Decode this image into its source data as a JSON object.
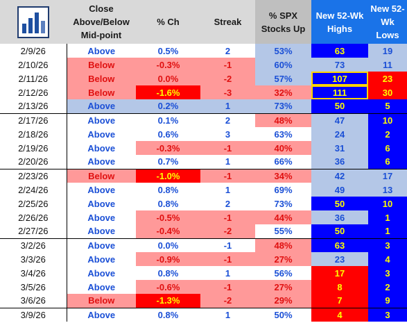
{
  "headers": {
    "close": "Close Above/Below Mid-point",
    "pct_ch": "% Ch",
    "streak": "Streak",
    "spx_up": "% SPX Stocks Up",
    "new_highs": "New 52-Wk Highs",
    "new_lows": "New 52-Wk Lows"
  },
  "rows": [
    {
      "date": "2/9/26",
      "close": "Above",
      "pct": "0.5%",
      "streak": "2",
      "spx": "53%",
      "highs": "63",
      "lows": "19",
      "week_end": false
    },
    {
      "date": "2/10/26",
      "close": "Below",
      "pct": "-0.3%",
      "streak": "-1",
      "spx": "60%",
      "highs": "73",
      "lows": "11",
      "week_end": false
    },
    {
      "date": "2/11/26",
      "close": "Below",
      "pct": "0.0%",
      "streak": "-2",
      "spx": "57%",
      "highs": "107",
      "lows": "23",
      "week_end": false
    },
    {
      "date": "2/12/26",
      "close": "Below",
      "pct": "-1.6%",
      "streak": "-3",
      "spx": "32%",
      "highs": "111",
      "lows": "30",
      "week_end": false
    },
    {
      "date": "2/13/26",
      "close": "Above",
      "pct": "0.2%",
      "streak": "1",
      "spx": "73%",
      "highs": "50",
      "lows": "5",
      "week_end": true
    },
    {
      "date": "2/17/26",
      "close": "Above",
      "pct": "0.1%",
      "streak": "2",
      "spx": "48%",
      "highs": "47",
      "lows": "10",
      "week_end": false
    },
    {
      "date": "2/18/26",
      "close": "Above",
      "pct": "0.6%",
      "streak": "3",
      "spx": "63%",
      "highs": "24",
      "lows": "2",
      "week_end": false
    },
    {
      "date": "2/19/26",
      "close": "Above",
      "pct": "-0.3%",
      "streak": "-1",
      "spx": "40%",
      "highs": "31",
      "lows": "6",
      "week_end": false
    },
    {
      "date": "2/20/26",
      "close": "Above",
      "pct": "0.7%",
      "streak": "1",
      "spx": "66%",
      "highs": "36",
      "lows": "6",
      "week_end": true
    },
    {
      "date": "2/23/26",
      "close": "Below",
      "pct": "-1.0%",
      "streak": "-1",
      "spx": "34%",
      "highs": "42",
      "lows": "17",
      "week_end": false
    },
    {
      "date": "2/24/26",
      "close": "Above",
      "pct": "0.8%",
      "streak": "1",
      "spx": "69%",
      "highs": "49",
      "lows": "13",
      "week_end": false
    },
    {
      "date": "2/25/26",
      "close": "Above",
      "pct": "0.8%",
      "streak": "2",
      "spx": "73%",
      "highs": "50",
      "lows": "10",
      "week_end": false
    },
    {
      "date": "2/26/26",
      "close": "Above",
      "pct": "-0.5%",
      "streak": "-1",
      "spx": "44%",
      "highs": "36",
      "lows": "1",
      "week_end": false
    },
    {
      "date": "2/27/26",
      "close": "Above",
      "pct": "-0.4%",
      "streak": "-2",
      "spx": "55%",
      "highs": "50",
      "lows": "1",
      "week_end": true
    },
    {
      "date": "3/2/26",
      "close": "Above",
      "pct": "0.0%",
      "streak": "-1",
      "spx": "48%",
      "highs": "63",
      "lows": "3",
      "week_end": false
    },
    {
      "date": "3/3/26",
      "close": "Above",
      "pct": "-0.9%",
      "streak": "-1",
      "spx": "27%",
      "highs": "23",
      "lows": "4",
      "week_end": false
    },
    {
      "date": "3/4/26",
      "close": "Above",
      "pct": "0.8%",
      "streak": "1",
      "spx": "56%",
      "highs": "17",
      "lows": "3",
      "week_end": false
    },
    {
      "date": "3/5/26",
      "close": "Above",
      "pct": "-0.6%",
      "streak": "-1",
      "spx": "27%",
      "highs": "8",
      "lows": "2",
      "week_end": false
    },
    {
      "date": "3/6/26",
      "close": "Below",
      "pct": "-1.3%",
      "streak": "-2",
      "spx": "29%",
      "highs": "7",
      "lows": "9",
      "week_end": true
    },
    {
      "date": "3/9/26",
      "close": "Above",
      "pct": "0.8%",
      "streak": "1",
      "spx": "50%",
      "highs": "4",
      "lows": "3",
      "week_end": false
    }
  ],
  "colors": {
    "accent_blue": "#1a73e8",
    "light_blue": "#b4c7e7",
    "pink": "#ff9999",
    "red": "#ff0000",
    "bright_blue": "#0000ff",
    "yellow": "#ffff00"
  },
  "logo_icon": "bar-chart-logo-icon"
}
